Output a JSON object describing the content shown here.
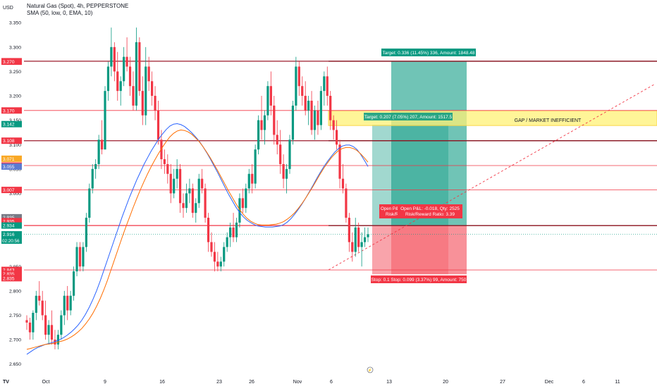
{
  "header": {
    "title": "Natural Gas (Spot), 4h, PEPPERSTONE",
    "indicator": "SMA (50, low, 0, EMA, 10)",
    "currency": "USD"
  },
  "colors": {
    "up": "#089981",
    "down": "#f23645",
    "ema_blue": "#2962ff",
    "ema_orange": "#ff6d00",
    "level_line": "#f23645",
    "gap_zone": "#fff176",
    "target_zone": "#089981",
    "stop_zone": "#f23645"
  },
  "chart_data": {
    "type": "candlestick",
    "title": "Natural Gas (Spot), 4h, PEPPERSTONE",
    "ylim": [
      2.625,
      3.385
    ],
    "y_ticks": [
      2.65,
      2.7,
      2.75,
      2.8,
      2.85,
      2.9,
      2.95,
      3.0,
      3.05,
      3.1,
      3.15,
      3.2,
      3.25,
      3.3,
      3.35
    ],
    "x_tick_labels": [
      "Oct",
      "9",
      "16",
      "23",
      "26",
      "Nov",
      "6",
      "13",
      "20",
      "27",
      "Dec",
      "6",
      "11"
    ],
    "grid": false,
    "current_price": "2.916",
    "countdown": "02:20:56",
    "price_tags": [
      {
        "label": "3.271",
        "value": 3.271,
        "color": "#f23645"
      },
      {
        "label": "3.270",
        "value": 3.27,
        "color": "#f23645"
      },
      {
        "label": "3.170",
        "value": 3.17,
        "color": "#f23645"
      },
      {
        "label": "3.142",
        "value": 3.142,
        "color": "#089981"
      },
      {
        "label": "3.108",
        "value": 3.108,
        "color": "#f23645"
      },
      {
        "label": "3.071",
        "value": 3.071,
        "color": "#f9a825"
      },
      {
        "label": "3.057",
        "value": 3.057,
        "color": "#f23645"
      },
      {
        "label": "3.055",
        "value": 3.055,
        "color": "#5b7ad0"
      },
      {
        "label": "3.007",
        "value": 3.007,
        "color": "#f23645"
      },
      {
        "label": "2.935",
        "value": 2.951,
        "color": "#787b86"
      },
      {
        "label": "2.935",
        "value": 2.943,
        "color": "#f23645"
      },
      {
        "label": "2.934",
        "value": 2.934,
        "color": "#089981"
      },
      {
        "label": "2.843",
        "value": 2.843,
        "color": "#f23645"
      },
      {
        "label": "2.835",
        "value": 2.835,
        "color": "#f23645"
      },
      {
        "label": "2.835",
        "value": 2.826,
        "color": "#f23645"
      }
    ],
    "horizontal_levels": [
      3.271,
      3.17,
      3.108,
      3.057,
      3.007,
      2.934,
      2.843
    ],
    "gap_zone": {
      "label": "GAP / MARKET INEFFICIENT",
      "top": 3.152,
      "bottom": 3.142
    },
    "trend_line": {
      "from": [
        2.84
      ],
      "to": [
        3.225
      ]
    },
    "positions": [
      {
        "entry": 2.934,
        "target": 3.271,
        "stop": 2.834,
        "target_label": "Target: 0.336 (11.45%) 336, Amount: 1848.48",
        "open_label": "Open P&L: -0.018, Qty: 2525",
        "rr_label": "Risk/Reward Ratio: 3.39",
        "stop_label": "Stop: 0.1  Stop: 0.099 (3.37%) 99, Amount: 750"
      },
      {
        "entry": 2.934,
        "target": 3.141,
        "stop": 2.834,
        "target_label": "Target: 0.207 (7.05%) 207, Amount: 1517.5",
        "open_label": "Open P&L",
        "rr_label": "Risk/Re"
      }
    ],
    "series": [
      {
        "name": "price",
        "ohlc": [
          [
            2.74,
            2.75,
            2.72,
            2.735
          ],
          [
            2.735,
            2.745,
            2.7,
            2.715
          ],
          [
            2.715,
            2.76,
            2.7,
            2.755
          ],
          [
            2.755,
            2.8,
            2.74,
            2.79
          ],
          [
            2.79,
            2.82,
            2.77,
            2.78
          ],
          [
            2.78,
            2.8,
            2.74,
            2.75
          ],
          [
            2.75,
            2.78,
            2.7,
            2.71
          ],
          [
            2.71,
            2.74,
            2.69,
            2.73
          ],
          [
            2.73,
            2.76,
            2.69,
            2.7
          ],
          [
            2.7,
            2.72,
            2.68,
            2.69
          ],
          [
            2.69,
            2.72,
            2.68,
            2.71
          ],
          [
            2.71,
            2.76,
            2.7,
            2.75
          ],
          [
            2.75,
            2.8,
            2.73,
            2.79
          ],
          [
            2.79,
            2.81,
            2.74,
            2.76
          ],
          [
            2.76,
            2.8,
            2.75,
            2.79
          ],
          [
            2.79,
            2.85,
            2.78,
            2.84
          ],
          [
            2.84,
            2.9,
            2.83,
            2.89
          ],
          [
            2.89,
            2.9,
            2.84,
            2.85
          ],
          [
            2.85,
            2.9,
            2.84,
            2.89
          ],
          [
            2.89,
            2.96,
            2.88,
            2.95
          ],
          [
            2.95,
            3.02,
            2.94,
            3.01
          ],
          [
            3.01,
            3.06,
            3.0,
            3.05
          ],
          [
            3.05,
            3.07,
            3.03,
            3.06
          ],
          [
            3.06,
            3.12,
            3.05,
            3.11
          ],
          [
            3.11,
            3.15,
            3.08,
            3.09
          ],
          [
            3.09,
            3.22,
            3.09,
            3.21
          ],
          [
            3.21,
            3.27,
            3.19,
            3.26
          ],
          [
            3.26,
            3.34,
            3.24,
            3.3
          ],
          [
            3.3,
            3.31,
            3.23,
            3.25
          ],
          [
            3.25,
            3.29,
            3.19,
            3.21
          ],
          [
            3.21,
            3.24,
            3.18,
            3.23
          ],
          [
            3.23,
            3.3,
            3.22,
            3.28
          ],
          [
            3.28,
            3.32,
            3.25,
            3.26
          ],
          [
            3.26,
            3.28,
            3.2,
            3.22
          ],
          [
            3.22,
            3.25,
            3.17,
            3.18
          ],
          [
            3.18,
            3.34,
            3.17,
            3.31
          ],
          [
            3.31,
            3.32,
            3.2,
            3.21
          ],
          [
            3.21,
            3.24,
            3.14,
            3.16
          ],
          [
            3.16,
            3.3,
            3.14,
            3.26
          ],
          [
            3.26,
            3.28,
            3.21,
            3.23
          ],
          [
            3.23,
            3.25,
            3.18,
            3.2
          ],
          [
            3.2,
            3.22,
            3.15,
            3.17
          ],
          [
            3.17,
            3.19,
            3.1,
            3.11
          ],
          [
            3.11,
            3.13,
            3.05,
            3.07
          ],
          [
            3.07,
            3.09,
            3.04,
            3.06
          ],
          [
            3.06,
            3.08,
            3.02,
            3.04
          ],
          [
            3.04,
            3.06,
            2.98,
            3.0
          ],
          [
            3.0,
            3.05,
            2.99,
            3.03
          ],
          [
            3.03,
            3.07,
            3.01,
            3.05
          ],
          [
            3.05,
            3.06,
            2.96,
            2.98
          ],
          [
            2.98,
            3.0,
            2.95,
            2.97
          ],
          [
            2.97,
            3.02,
            2.96,
            3.0
          ],
          [
            3.0,
            3.03,
            2.98,
            3.01
          ],
          [
            3.01,
            3.02,
            2.95,
            2.96
          ],
          [
            2.96,
            2.99,
            2.94,
            2.98
          ],
          [
            2.98,
            3.04,
            2.97,
            3.03
          ],
          [
            3.03,
            3.05,
            3.0,
            3.01
          ],
          [
            3.01,
            3.02,
            2.94,
            2.95
          ],
          [
            2.95,
            2.96,
            2.88,
            2.9
          ],
          [
            2.9,
            2.92,
            2.87,
            2.88
          ],
          [
            2.88,
            2.9,
            2.84,
            2.86
          ],
          [
            2.86,
            2.88,
            2.84,
            2.85
          ],
          [
            2.85,
            2.87,
            2.84,
            2.86
          ],
          [
            2.86,
            2.9,
            2.85,
            2.89
          ],
          [
            2.89,
            2.92,
            2.88,
            2.91
          ],
          [
            2.91,
            2.94,
            2.89,
            2.93
          ],
          [
            2.93,
            2.96,
            2.9,
            2.91
          ],
          [
            2.91,
            2.95,
            2.9,
            2.94
          ],
          [
            2.94,
            3.0,
            2.93,
            2.99
          ],
          [
            2.99,
            3.01,
            2.96,
            2.97
          ],
          [
            2.97,
            3.02,
            2.96,
            3.01
          ],
          [
            3.01,
            3.05,
            3.0,
            3.04
          ],
          [
            3.04,
            3.06,
            3.0,
            3.02
          ],
          [
            3.02,
            3.1,
            3.01,
            3.09
          ],
          [
            3.09,
            3.16,
            3.08,
            3.15
          ],
          [
            3.15,
            3.2,
            3.11,
            3.13
          ],
          [
            3.13,
            3.17,
            3.1,
            3.16
          ],
          [
            3.16,
            3.23,
            3.15,
            3.22
          ],
          [
            3.22,
            3.25,
            3.16,
            3.18
          ],
          [
            3.18,
            3.2,
            3.1,
            3.12
          ],
          [
            3.12,
            3.15,
            3.08,
            3.1
          ],
          [
            3.1,
            3.13,
            3.04,
            3.06
          ],
          [
            3.06,
            3.08,
            3.01,
            3.03
          ],
          [
            3.03,
            3.06,
            3.0,
            3.05
          ],
          [
            3.05,
            3.12,
            3.04,
            3.11
          ],
          [
            3.11,
            3.19,
            3.1,
            3.18
          ],
          [
            3.18,
            3.28,
            3.17,
            3.26
          ],
          [
            3.26,
            3.27,
            3.2,
            3.22
          ],
          [
            3.22,
            3.24,
            3.18,
            3.2
          ],
          [
            3.2,
            3.23,
            3.16,
            3.17
          ],
          [
            3.17,
            3.2,
            3.14,
            3.19
          ],
          [
            3.19,
            3.21,
            3.12,
            3.13
          ],
          [
            3.13,
            3.18,
            3.11,
            3.17
          ],
          [
            3.17,
            3.19,
            3.12,
            3.14
          ],
          [
            3.14,
            3.22,
            3.13,
            3.21
          ],
          [
            3.21,
            3.25,
            3.18,
            3.24
          ],
          [
            3.24,
            3.26,
            3.18,
            3.2
          ],
          [
            3.2,
            3.21,
            3.13,
            3.15
          ],
          [
            3.15,
            3.16,
            3.11,
            3.13
          ],
          [
            3.13,
            3.15,
            3.09,
            3.1
          ],
          [
            3.1,
            3.11,
            3.01,
            3.03
          ],
          [
            3.03,
            3.06,
            3.0,
            3.01
          ],
          [
            3.01,
            3.02,
            2.94,
            2.95
          ],
          [
            2.95,
            2.96,
            2.88,
            2.9
          ],
          [
            2.9,
            2.92,
            2.86,
            2.88
          ],
          [
            2.88,
            2.95,
            2.87,
            2.93
          ],
          [
            2.93,
            2.94,
            2.88,
            2.89
          ],
          [
            2.89,
            2.92,
            2.85,
            2.9
          ],
          [
            2.9,
            2.93,
            2.89,
            2.91
          ],
          [
            2.91,
            2.93,
            2.9,
            2.916
          ]
        ]
      },
      {
        "name": "ema_blue",
        "values": [
          2.67,
          2.675,
          2.68,
          2.684,
          2.687,
          2.69,
          2.692,
          2.694,
          2.697,
          2.7,
          2.704,
          2.709,
          2.715,
          2.722,
          2.73,
          2.74,
          2.752,
          2.766,
          2.782,
          2.8,
          2.82,
          2.842,
          2.864,
          2.886,
          2.908,
          2.93,
          2.952,
          2.972,
          2.992,
          3.01,
          3.028,
          3.044,
          3.06,
          3.074,
          3.088,
          3.1,
          3.112,
          3.122,
          3.131,
          3.138,
          3.142,
          3.143,
          3.141,
          3.137,
          3.131,
          3.124,
          3.116,
          3.107,
          3.096,
          3.084,
          3.071,
          3.057,
          3.043,
          3.028,
          3.013,
          2.998,
          2.985,
          2.972,
          2.961,
          2.952,
          2.945,
          2.94,
          2.936,
          2.933,
          2.932,
          2.931,
          2.931,
          2.931,
          2.932,
          2.933,
          2.936,
          2.941,
          2.948,
          2.957,
          2.967,
          2.978,
          2.99,
          3.003,
          3.016,
          3.03,
          3.043,
          3.055,
          3.066,
          3.076,
          3.085,
          3.092,
          3.097,
          3.099,
          3.099,
          3.096,
          3.09,
          3.08,
          3.068,
          3.055
        ]
      },
      {
        "name": "ema_orange",
        "values": [
          2.68,
          2.682,
          2.684,
          2.686,
          2.688,
          2.69,
          2.691,
          2.692,
          2.694,
          2.696,
          2.698,
          2.701,
          2.705,
          2.71,
          2.716,
          2.723,
          2.732,
          2.742,
          2.754,
          2.768,
          2.784,
          2.802,
          2.822,
          2.844,
          2.866,
          2.888,
          2.91,
          2.931,
          2.951,
          2.971,
          2.99,
          3.008,
          3.025,
          3.041,
          3.056,
          3.07,
          3.083,
          3.095,
          3.106,
          3.116,
          3.123,
          3.128,
          3.13,
          3.129,
          3.126,
          3.121,
          3.114,
          3.106,
          3.096,
          3.085,
          3.073,
          3.06,
          3.047,
          3.033,
          3.019,
          3.005,
          2.992,
          2.979,
          2.967,
          2.957,
          2.949,
          2.943,
          2.939,
          2.936,
          2.935,
          2.935,
          2.935,
          2.936,
          2.937,
          2.939,
          2.942,
          2.947,
          2.953,
          2.96,
          2.969,
          2.979,
          2.99,
          3.002,
          3.014,
          3.027,
          3.04,
          3.052,
          3.063,
          3.073,
          3.081,
          3.088,
          3.092,
          3.094,
          3.094,
          3.092,
          3.088,
          3.081,
          3.073,
          3.064
        ]
      }
    ]
  },
  "footer": {
    "logo": "TV",
    "event_marker": "economic-event-icon"
  }
}
